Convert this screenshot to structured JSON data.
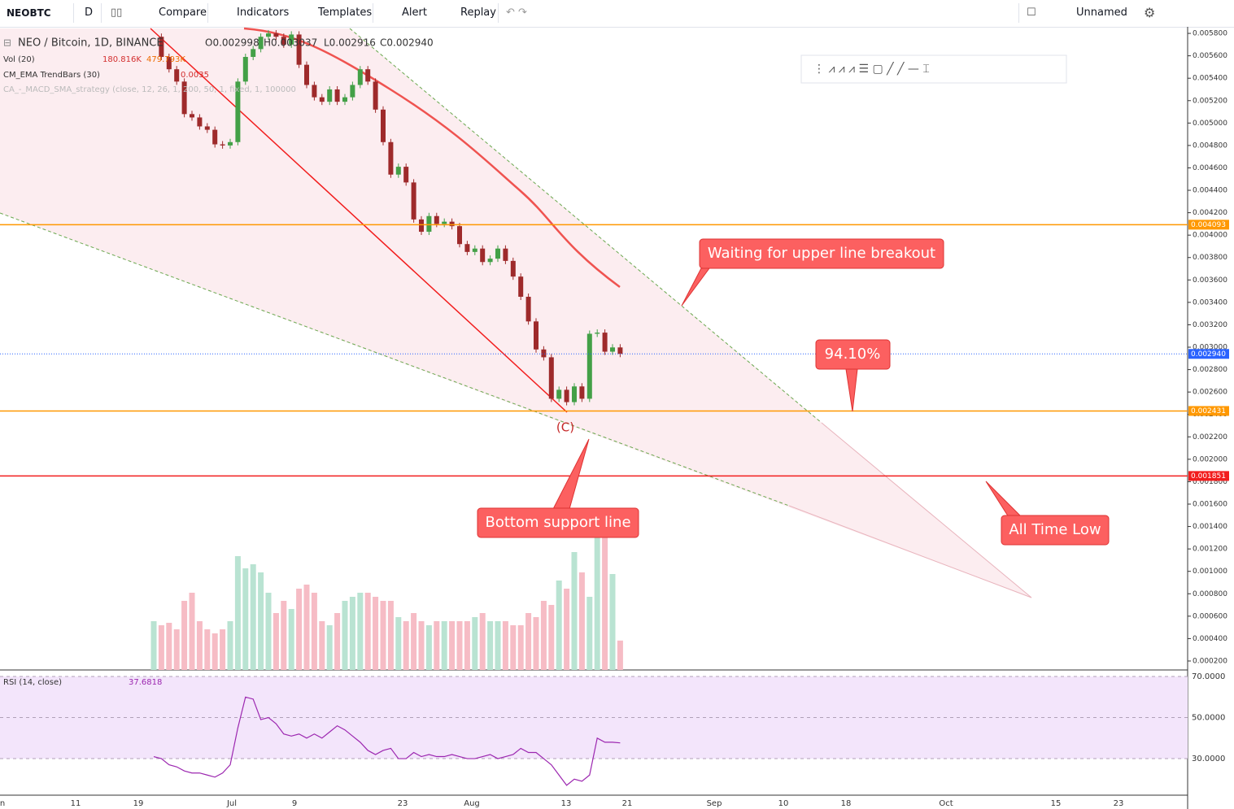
{
  "toolbar": {
    "symbol": "NEOBTC",
    "interval": "D",
    "buttons": [
      "Compare",
      "Indicators",
      "Templates",
      "Alert",
      "Replay"
    ],
    "layout_name": "Unnamed"
  },
  "chart_data": {
    "type": "candlestick",
    "title": "NEO / Bitcoin, 1D, BINANCE",
    "legend": {
      "open": "O0.002998",
      "high": "H0.003037",
      "low": "L0.002916",
      "close": "C0.002940"
    },
    "up_color": "#43a047",
    "down_color": "#9e2a2b",
    "volume_up_color": "#b9e3d2",
    "volume_down_color": "#f6bcc5",
    "close": [
      0.00577,
      0.00559,
      0.00548,
      0.00537,
      0.00508,
      0.00505,
      0.00497,
      0.00494,
      0.00481,
      0.0048,
      0.00483,
      0.00537,
      0.00559,
      0.00566,
      0.00577,
      0.0058,
      0.00577,
      0.0057,
      0.00579,
      0.00552,
      0.00534,
      0.00523,
      0.00519,
      0.0053,
      0.00519,
      0.00523,
      0.00534,
      0.00548,
      0.00537,
      0.00512,
      0.00483,
      0.00454,
      0.00461,
      0.00447,
      0.00414,
      0.00403,
      0.00417,
      0.0041,
      0.00412,
      0.00408,
      0.00392,
      0.00385,
      0.00388,
      0.00376,
      0.00379,
      0.00388,
      0.00377,
      0.00363,
      0.00345,
      0.00323,
      0.00298,
      0.00291,
      0.00254,
      0.00262,
      0.00251,
      0.00265,
      0.00254,
      0.00312,
      0.00313,
      0.00296,
      0.002998,
      0.00294
    ],
    "volume": {
      "name": "Vol (20)",
      "value_label": "180.816K",
      "ma_label": "479.793K",
      "values": [
        300,
        275,
        290,
        250,
        425,
        475,
        300,
        250,
        225,
        250,
        300,
        700,
        625,
        650,
        600,
        475,
        350,
        425,
        375,
        500,
        525,
        475,
        300,
        275,
        350,
        425,
        450,
        475,
        475,
        450,
        425,
        425,
        325,
        300,
        350,
        300,
        275,
        300,
        300,
        300,
        300,
        300,
        325,
        350,
        300,
        300,
        300,
        275,
        275,
        350,
        325,
        425,
        400,
        550,
        500,
        725,
        600,
        450,
        950,
        850,
        590,
        180.816
      ]
    },
    "trendbars": {
      "name": "CM_EMA TrendBars (30)",
      "value_label": "0.0035"
    },
    "strategy": {
      "name": "CA_-_MACD_SMA_strategy (close, 12, 26, 1, 200, 50, 1, fixed, 1, 100000"
    },
    "ylim": [
      0.00012,
      0.005844
    ],
    "yticks": [
      {
        "value": 0.0058,
        "label": "0.005800"
      },
      {
        "value": 0.0056,
        "label": "0.005600"
      },
      {
        "value": 0.0054,
        "label": "0.005400"
      },
      {
        "value": 0.0052,
        "label": "0.005200"
      },
      {
        "value": 0.005,
        "label": "0.005000"
      },
      {
        "value": 0.0048,
        "label": "0.004800"
      },
      {
        "value": 0.0046,
        "label": "0.004600"
      },
      {
        "value": 0.0044,
        "label": "0.004400"
      },
      {
        "value": 0.0042,
        "label": "0.004200"
      },
      {
        "value": 0.004,
        "label": "0.004000"
      },
      {
        "value": 0.0038,
        "label": "0.003800"
      },
      {
        "value": 0.0036,
        "label": "0.003600"
      },
      {
        "value": 0.0034,
        "label": "0.003400"
      },
      {
        "value": 0.0032,
        "label": "0.003200"
      },
      {
        "value": 0.003,
        "label": "0.003000"
      },
      {
        "value": 0.0028,
        "label": "0.002800"
      },
      {
        "value": 0.0026,
        "label": "0.002600"
      },
      {
        "value": 0.0024,
        "label": "0.002400"
      },
      {
        "value": 0.0022,
        "label": "0.002200"
      },
      {
        "value": 0.002,
        "label": "0.002000"
      },
      {
        "value": 0.0018,
        "label": "0.001800"
      },
      {
        "value": 0.0016,
        "label": "0.001600"
      },
      {
        "value": 0.0014,
        "label": "0.001400"
      },
      {
        "value": 0.0012,
        "label": "0.001200"
      },
      {
        "value": 0.001,
        "label": "0.001000"
      },
      {
        "value": 0.0008,
        "label": "0.000800"
      },
      {
        "value": 0.0006,
        "label": "0.000600"
      },
      {
        "value": 0.0004,
        "label": "0.000400"
      },
      {
        "value": 0.0002,
        "label": "0.000200"
      }
    ],
    "price_lines": [
      {
        "value": 0.004093,
        "label": "0.004093",
        "color": "#ff9800"
      },
      {
        "value": 0.002431,
        "label": "0.002431",
        "color": "#ff9800"
      },
      {
        "value": 0.00294,
        "label": "0.002940",
        "color": "#2962ff"
      },
      {
        "value": 0.001851,
        "label": "0.001851",
        "color": "#f21d1d"
      }
    ],
    "xticks": [
      "n",
      "11",
      "19",
      "Jul",
      "9",
      "23",
      "Aug",
      "13",
      "21",
      "Sep",
      "10",
      "18",
      "Oct",
      "15",
      "23"
    ],
    "rsi": {
      "name": "RSI (14, close)",
      "value_label": "37.6818",
      "color": "#9c27b0",
      "ylim": [
        12.2,
        72.4
      ],
      "yticks": [
        {
          "value": 70,
          "label": "70.0000"
        },
        {
          "value": 50,
          "label": "50.0000"
        },
        {
          "value": 30,
          "label": "30.0000"
        }
      ],
      "values": [
        31,
        30,
        27,
        26,
        24,
        23,
        23,
        22,
        21,
        23,
        27,
        45,
        60,
        59,
        49,
        50,
        47,
        42,
        41,
        42,
        40,
        42,
        40,
        43,
        46,
        44,
        41,
        38,
        34,
        32,
        34,
        35,
        30,
        30,
        33,
        31,
        32,
        31,
        31,
        32,
        31,
        30,
        30,
        31,
        32,
        30,
        31,
        32,
        35,
        33,
        33,
        30,
        27,
        22,
        17,
        20,
        19,
        22,
        40,
        38,
        38,
        37.6818
      ]
    },
    "annotations": {
      "upper": "Waiting for upper line breakout",
      "percent": "94.10%",
      "bottom": "Bottom support line",
      "atl": "All Time Low",
      "wave": "(C)"
    }
  }
}
